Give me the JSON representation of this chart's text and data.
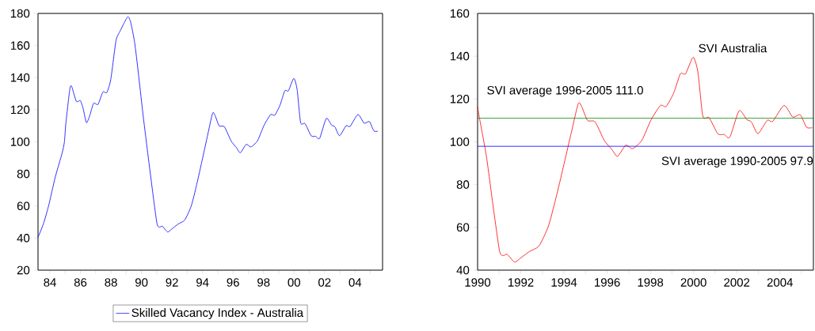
{
  "chart_data": [
    {
      "type": "line",
      "legend": "bottom",
      "x": [
        1983.22,
        1983.57,
        1983.91,
        1984.35,
        1984.8,
        1984.95,
        1985.04,
        1985.3,
        1985.42,
        1985.73,
        1985.99,
        1986.17,
        1986.39,
        1986.6,
        1986.86,
        1987.15,
        1987.47,
        1987.73,
        1987.99,
        1988.33,
        1988.59,
        1988.85,
        1989.11,
        1989.29,
        1989.55,
        1989.8,
        1990.07,
        1990.41,
        1990.76,
        1991.02,
        1991.19,
        1991.37,
        1991.71,
        1991.97,
        1992.41,
        1992.84,
        1993.27,
        1993.62,
        1993.97,
        1994.31,
        1994.66,
        1994.83,
        1995.09,
        1995.44,
        1995.87,
        1996.22,
        1996.48,
        1996.86,
        1997.17,
        1997.6,
        1998.04,
        1998.47,
        1998.73,
        1999.08,
        1999.39,
        1999.63,
        1999.98,
        2000.2,
        2000.43,
        2000.72,
        2001.12,
        2001.42,
        2001.68,
        2002.11,
        2002.46,
        2002.68,
        2002.98,
        2003.41,
        2003.67,
        2004.19,
        2004.59,
        2004.94,
        2005.23,
        2005.49
      ],
      "series": [
        {
          "name": "Skilled Vacancy Index - Australia",
          "color": "#0000ff",
          "values": [
            40.5,
            48.8,
            60,
            78,
            93,
            100,
            111,
            132.6,
            134.6,
            125.2,
            125.7,
            121,
            112,
            116,
            124,
            123.3,
            131,
            130.7,
            139,
            163,
            168.8,
            173.8,
            177.9,
            174.6,
            162,
            142.5,
            119.5,
            93,
            66.8,
            48.8,
            46.8,
            47.4,
            43.8,
            45.5,
            48.8,
            51.3,
            60.3,
            73.4,
            88.2,
            103,
            117.8,
            116.2,
            110,
            109.3,
            100.6,
            96.4,
            93.2,
            98.4,
            96.8,
            100.6,
            110.4,
            117,
            116.5,
            122.8,
            131.8,
            131.8,
            139.5,
            132.6,
            112,
            111.3,
            103.8,
            103.4,
            102.2,
            114.5,
            110.4,
            109.3,
            103.8,
            110,
            109.6,
            117,
            111.6,
            112.6,
            106.8,
            106.6
          ]
        }
      ],
      "xlim": [
        1983.22,
        2005.8
      ],
      "ylim": [
        20,
        180
      ],
      "yticks": [
        20,
        40,
        60,
        80,
        100,
        120,
        140,
        160,
        180
      ],
      "xticks": [
        {
          "value": 1984,
          "label": "84"
        },
        {
          "value": 1985,
          "label": null
        },
        {
          "value": 1986,
          "label": "86"
        },
        {
          "value": 1987,
          "label": null
        },
        {
          "value": 1988,
          "label": "88"
        },
        {
          "value": 1989,
          "label": null
        },
        {
          "value": 1990,
          "label": "90"
        },
        {
          "value": 1991,
          "label": null
        },
        {
          "value": 1992,
          "label": "92"
        },
        {
          "value": 1993,
          "label": null
        },
        {
          "value": 1994,
          "label": "94"
        },
        {
          "value": 1995,
          "label": null
        },
        {
          "value": 1996,
          "label": "96"
        },
        {
          "value": 1997,
          "label": null
        },
        {
          "value": 1998,
          "label": "98"
        },
        {
          "value": 1999,
          "label": null
        },
        {
          "value": 2000,
          "label": "00"
        },
        {
          "value": 2001,
          "label": null
        },
        {
          "value": 2002,
          "label": "02"
        },
        {
          "value": 2003,
          "label": null
        },
        {
          "value": 2004,
          "label": "04"
        },
        {
          "value": 2005,
          "label": null
        }
      ]
    },
    {
      "type": "line",
      "x": [
        1990.0,
        1990.07,
        1990.41,
        1990.76,
        1991.02,
        1991.19,
        1991.37,
        1991.71,
        1991.97,
        1992.41,
        1992.84,
        1993.27,
        1993.62,
        1993.97,
        1994.31,
        1994.66,
        1994.83,
        1995.09,
        1995.44,
        1995.87,
        1996.22,
        1996.48,
        1996.86,
        1997.17,
        1997.6,
        1998.04,
        1998.47,
        1998.73,
        1999.08,
        1999.39,
        1999.63,
        1999.98,
        2000.2,
        2000.43,
        2000.72,
        2001.12,
        2001.42,
        2001.68,
        2002.11,
        2002.46,
        2002.68,
        2002.98,
        2003.41,
        2003.67,
        2004.19,
        2004.59,
        2004.94,
        2005.23,
        2005.49
      ],
      "series": [
        {
          "name": "SVI Australia",
          "color": "#ff0000",
          "values": [
            116.5,
            112,
            93,
            66.8,
            48.8,
            46.8,
            47.4,
            43.8,
            45.5,
            48.8,
            51.3,
            60.3,
            73.4,
            88.2,
            103,
            117.8,
            116.2,
            110,
            109.3,
            100.6,
            96.4,
            93.2,
            98.4,
            96.8,
            100.6,
            110.4,
            117,
            116.5,
            122.8,
            131.8,
            131.8,
            139.5,
            132.6,
            112,
            111.3,
            103.8,
            103.4,
            102.2,
            114.5,
            110.4,
            109.3,
            103.8,
            110,
            109.6,
            117,
            111.6,
            112.6,
            106.8,
            106.6
          ]
        }
      ],
      "ref_lines": [
        {
          "axis": "y",
          "value": 111.0,
          "label": "SVI average 1996-2005 111.0",
          "color": "#008000"
        },
        {
          "axis": "y",
          "value": 97.9,
          "label": "SVI average 1990-2005 97.9",
          "color": "#0000ff"
        }
      ],
      "xlim": [
        1990,
        2005.55
      ],
      "ylim": [
        40,
        160
      ],
      "yticks": [
        40,
        60,
        80,
        100,
        120,
        140,
        160
      ],
      "xticks": [
        1990,
        {
          "value": 1991,
          "label": null
        },
        1992,
        {
          "value": 1993,
          "label": null
        },
        1994,
        {
          "value": 1995,
          "label": null
        },
        1996,
        {
          "value": 1997,
          "label": null
        },
        1998,
        {
          "value": 1999,
          "label": null
        },
        2000,
        {
          "value": 2001,
          "label": null
        },
        2002,
        {
          "value": 2003,
          "label": null
        },
        2004,
        {
          "value": 2005,
          "label": null
        }
      ]
    }
  ]
}
